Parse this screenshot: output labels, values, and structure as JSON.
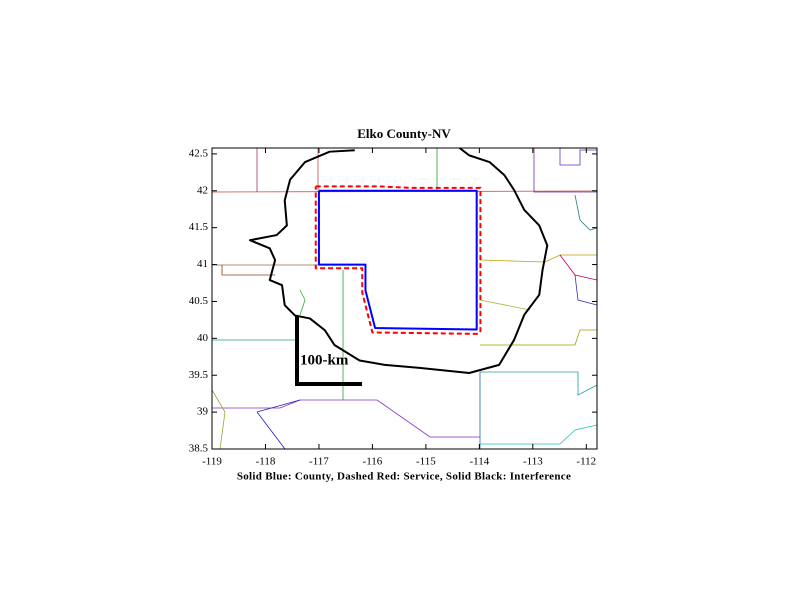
{
  "chart_data": {
    "type": "line",
    "title": "Elko County-NV",
    "x_label": "Solid Blue: County, Dashed Red: Service, Solid Black: Interference",
    "scale_bar_label": "100-km",
    "xlim": [
      -119,
      -111.8
    ],
    "ylim": [
      38.5,
      42.58
    ],
    "xticks": [
      -119,
      -118,
      -117,
      -116,
      -115,
      -114,
      -113,
      -112
    ],
    "yticks": [
      38.5,
      39,
      39.5,
      40,
      40.5,
      41,
      41.5,
      42,
      42.5
    ],
    "series": [
      {
        "color": "#0000ff",
        "width": 2,
        "dashed": false,
        "x": [
          -117.0,
          -114.05,
          -114.05,
          -115.95,
          -116.13,
          -116.13,
          -117.0,
          -117.0
        ],
        "values": [
          42.0,
          42.0,
          40.12,
          40.14,
          40.65,
          41.0,
          41.0,
          42.0
        ]
      },
      {
        "color": "#ff0000",
        "width": 2,
        "dashed": true,
        "x": [
          -117.06,
          -115.9,
          -115.3,
          -113.98,
          -113.98,
          -114.02,
          -116.0,
          -116.19,
          -116.19,
          -117.06,
          -117.06
        ],
        "values": [
          42.06,
          42.06,
          42.04,
          42.04,
          40.1,
          40.06,
          40.08,
          40.62,
          40.95,
          40.95,
          42.06
        ]
      },
      {
        "color": "#000000",
        "width": 2,
        "dashed": false,
        "x": [
          -116.33,
          -116.8,
          -117.26,
          -117.54,
          -117.64,
          -117.6,
          -117.79,
          -118.29,
          -117.92,
          -117.82,
          -117.92,
          -117.69,
          -117.64,
          -117.45,
          -117.17,
          -116.89,
          -116.71,
          -116.24,
          -115.77,
          -115.12,
          -114.19,
          -113.63,
          -113.35,
          -113.16,
          -112.88,
          -112.82,
          -112.73,
          -112.88,
          -113.16,
          -113.35,
          -113.53,
          -113.81,
          -114.19,
          -114.37
        ],
        "values": [
          42.55,
          42.53,
          42.39,
          42.15,
          41.87,
          41.53,
          41.4,
          41.33,
          41.22,
          41.06,
          40.79,
          40.72,
          40.45,
          40.31,
          40.27,
          40.11,
          39.91,
          39.7,
          39.64,
          39.6,
          39.53,
          39.64,
          39.98,
          40.32,
          40.59,
          40.92,
          41.26,
          41.53,
          41.74,
          42.01,
          42.21,
          42.39,
          42.48,
          42.58
        ]
      }
    ]
  }
}
